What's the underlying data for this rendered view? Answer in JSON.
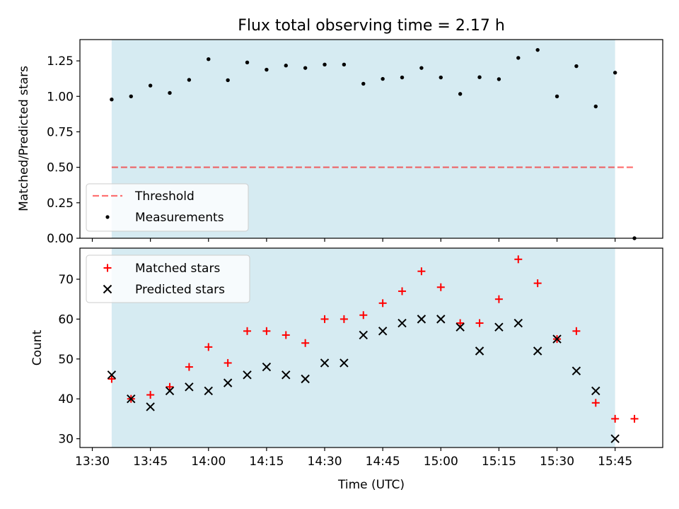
{
  "title": "Flux total observing time = 2.17 h",
  "colors": {
    "band": "#add8e6",
    "threshold": "#ff0000",
    "matched": "#ff0000",
    "predicted": "#000000",
    "measurement": "#000000"
  },
  "xaxis": {
    "label": "Time (UTC)",
    "ticks": [
      "13:30",
      "13:45",
      "14:00",
      "14:15",
      "14:30",
      "14:45",
      "15:00",
      "15:15",
      "15:30",
      "15:45"
    ],
    "tick_values": [
      0,
      15,
      30,
      45,
      60,
      75,
      90,
      105,
      120,
      135
    ],
    "range": [
      -3.2,
      147.3
    ]
  },
  "chart_data": [
    {
      "type": "scatter",
      "title": "Flux total observing time = 2.17 h",
      "ylabel": "Matched/Predicted stars",
      "xlabel": "",
      "ylim": [
        0,
        1.4
      ],
      "yticks": [
        0,
        0.25,
        0.5,
        0.75,
        1.0,
        1.25
      ],
      "ytick_labels": [
        "0.00",
        "0.25",
        "0.50",
        "0.75",
        "1.00",
        "1.25"
      ],
      "shaded_span": [
        5,
        135
      ],
      "threshold": {
        "name": "Threshold",
        "value": 0.5,
        "x_range": [
          5,
          140
        ]
      },
      "series": [
        {
          "name": "Measurements",
          "x": [
            5,
            10,
            15,
            20,
            25,
            30,
            35,
            40,
            45,
            50,
            55,
            60,
            65,
            70,
            75,
            80,
            85,
            90,
            95,
            100,
            105,
            110,
            115,
            120,
            125,
            130,
            135,
            140
          ],
          "values": [
            0.978,
            1.0,
            1.076,
            1.024,
            1.116,
            1.262,
            1.114,
            1.239,
            1.188,
            1.217,
            1.2,
            1.224,
            1.224,
            1.089,
            1.123,
            1.133,
            1.2,
            1.133,
            1.017,
            1.135,
            1.121,
            1.271,
            1.327,
            1.0,
            1.213,
            0.929,
            1.167,
            0.0
          ]
        }
      ],
      "legend": {
        "placement": "lower-left",
        "entries": [
          "Threshold",
          "Measurements"
        ]
      }
    },
    {
      "type": "scatter",
      "title": "",
      "ylabel": "Count",
      "xlabel": "Time (UTC)",
      "ylim": [
        27.8,
        77.8
      ],
      "yticks": [
        30,
        40,
        50,
        60,
        70
      ],
      "ytick_labels": [
        "30",
        "40",
        "50",
        "60",
        "70"
      ],
      "shaded_span": [
        5,
        135
      ],
      "series": [
        {
          "name": "Matched stars",
          "marker": "+",
          "x": [
            5,
            10,
            15,
            20,
            25,
            30,
            35,
            40,
            45,
            50,
            55,
            60,
            65,
            70,
            75,
            80,
            85,
            90,
            95,
            100,
            105,
            110,
            115,
            120,
            125,
            130,
            135,
            140
          ],
          "values": [
            45,
            40,
            41,
            43,
            48,
            53,
            49,
            57,
            57,
            56,
            54,
            60,
            60,
            61,
            64,
            67,
            72,
            68,
            59,
            59,
            65,
            75,
            69,
            55,
            57,
            39,
            35,
            35
          ]
        },
        {
          "name": "Predicted stars",
          "marker": "x",
          "x": [
            5,
            10,
            15,
            20,
            25,
            30,
            35,
            40,
            45,
            50,
            55,
            60,
            65,
            70,
            75,
            80,
            85,
            90,
            95,
            100,
            105,
            110,
            115,
            120,
            125,
            130,
            135
          ],
          "values": [
            46,
            40,
            38,
            42,
            43,
            42,
            44,
            46,
            48,
            46,
            45,
            49,
            49,
            56,
            57,
            59,
            60,
            60,
            58,
            52,
            58,
            59,
            52,
            55,
            47,
            42,
            30
          ]
        }
      ],
      "legend": {
        "placement": "top-left",
        "entries": [
          "Matched stars",
          "Predicted stars"
        ]
      }
    }
  ]
}
